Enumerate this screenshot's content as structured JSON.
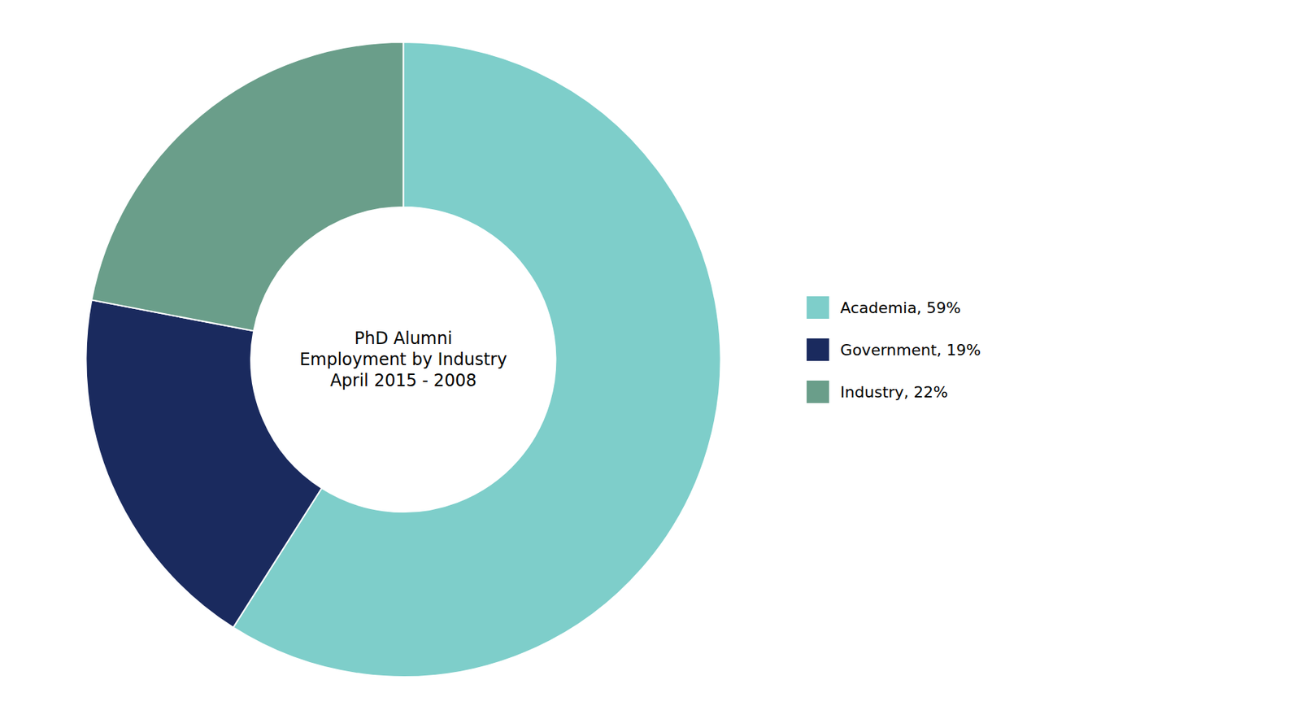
{
  "chart_data": {
    "type": "pie",
    "title": "PhD Alumni\nEmployment by Industry\nApril 2015 - 2008",
    "categories": [
      "Academia, 59%",
      "Government, 19%",
      "Industry, 22%"
    ],
    "values": [
      59,
      19,
      22
    ],
    "colors": [
      "#7ececa",
      "#1a2a5e",
      "#6a9e8a"
    ],
    "legend": "right"
  }
}
